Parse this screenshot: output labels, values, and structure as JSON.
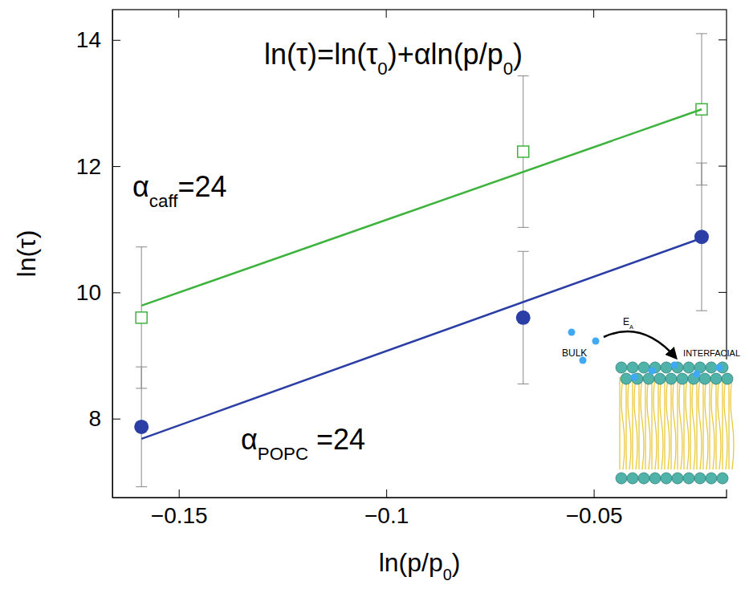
{
  "chart_data": {
    "type": "scatter",
    "x_label": [
      {
        "text": "ln(p/p"
      },
      {
        "text": "0",
        "subscript": true
      },
      {
        "text": ")"
      }
    ],
    "y_label": [
      {
        "text": "ln(τ)"
      }
    ],
    "xlim": [
      -0.166,
      -0.018
    ],
    "ylim": [
      6.75,
      14.48
    ],
    "xticks": [
      {
        "value": -0.15,
        "label": "−0.15"
      },
      {
        "value": -0.1,
        "label": "−0.1"
      },
      {
        "value": -0.05,
        "label": "−0.05"
      }
    ],
    "yticks": [
      8,
      10,
      12,
      14
    ],
    "grid": false,
    "series": [
      {
        "type": "scatter",
        "color": "#3db33d",
        "marker": "open-square",
        "x": [
          -0.159,
          -0.067,
          -0.024
        ],
        "values": [
          9.6,
          12.23,
          12.9
        ],
        "errors": [
          1.12,
          1.2,
          1.2
        ]
      },
      {
        "type": "line",
        "color": "#3db33d",
        "line_style": "solid",
        "x": [
          -0.159,
          -0.024
        ],
        "values": [
          9.79,
          12.9
        ]
      },
      {
        "type": "scatter",
        "color": "#2b3ea6",
        "marker": "filled-circle",
        "x": [
          -0.159,
          -0.067,
          -0.024
        ],
        "values": [
          7.87,
          9.6,
          10.88
        ],
        "errors": [
          0.95,
          1.05,
          1.17
        ]
      },
      {
        "type": "line",
        "color": "#2b3ea6",
        "line_style": "solid",
        "x": [
          -0.159,
          -0.024
        ],
        "values": [
          7.68,
          10.86
        ]
      }
    ],
    "annotations": [
      {
        "segments": [
          {
            "text": "ln(τ)=ln(τ"
          },
          {
            "text": "0",
            "subscript": true
          },
          {
            "text": ")+αln(p/p"
          },
          {
            "text": "0",
            "subscript": true
          },
          {
            "text": ")"
          }
        ]
      },
      {
        "segments": [
          {
            "text": "α"
          },
          {
            "text": "caff",
            "subscript": true
          },
          {
            "text": "=24"
          }
        ]
      },
      {
        "segments": [
          {
            "text": "α"
          },
          {
            "text": "POPC",
            "subscript": true
          },
          {
            "text": " =24"
          }
        ]
      },
      {
        "segments": [
          {
            "text": "BULK"
          }
        ]
      },
      {
        "segments": [
          {
            "text": "E"
          },
          {
            "text": "A",
            "subscript": true
          }
        ]
      },
      {
        "segments": [
          {
            "text": "INTERFACIAL"
          }
        ]
      }
    ]
  }
}
